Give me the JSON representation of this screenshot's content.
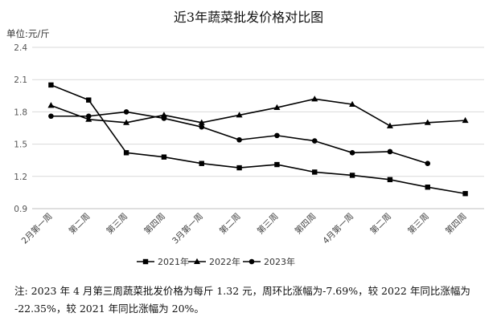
{
  "chart_data": {
    "type": "line",
    "title": "近3年蔬菜批发价格对比图",
    "unit_label": "单位:元/斤",
    "categories": [
      "2月第一周",
      "第二周",
      "第三周",
      "第四周",
      "3月第一周",
      "第二周",
      "第三周",
      "第四周",
      "4月第一周",
      "第二周",
      "第三周",
      "第四周"
    ],
    "ylim": [
      0.9,
      2.4
    ],
    "yticks": [
      "0.9",
      "1.2",
      "1.5",
      "1.8",
      "2.1",
      "2.4"
    ],
    "grid": true,
    "legend_position": "bottom",
    "series": [
      {
        "name": "2021年",
        "marker": "square",
        "color": "#000000",
        "values": [
          2.05,
          1.91,
          1.42,
          1.38,
          1.32,
          1.28,
          1.31,
          1.24,
          1.21,
          1.17,
          1.1,
          1.04
        ]
      },
      {
        "name": "2022年",
        "marker": "triangle",
        "color": "#000000",
        "values": [
          1.86,
          1.73,
          1.7,
          1.77,
          1.7,
          1.77,
          1.84,
          1.92,
          1.87,
          1.67,
          1.7,
          1.72
        ]
      },
      {
        "name": "2023年",
        "marker": "circle",
        "color": "#000000",
        "values": [
          1.76,
          1.76,
          1.8,
          1.74,
          1.66,
          1.54,
          1.58,
          1.53,
          1.42,
          1.43,
          1.32,
          null
        ]
      }
    ]
  },
  "note": {
    "line1": "注: 2023 年 4 月第三周蔬菜批发价格为每斤 1.32 元，周环比涨幅为-7.69%，较 2022 年同比涨幅为",
    "line2": "-22.35%，较 2021 年同比涨幅为 20%。"
  }
}
